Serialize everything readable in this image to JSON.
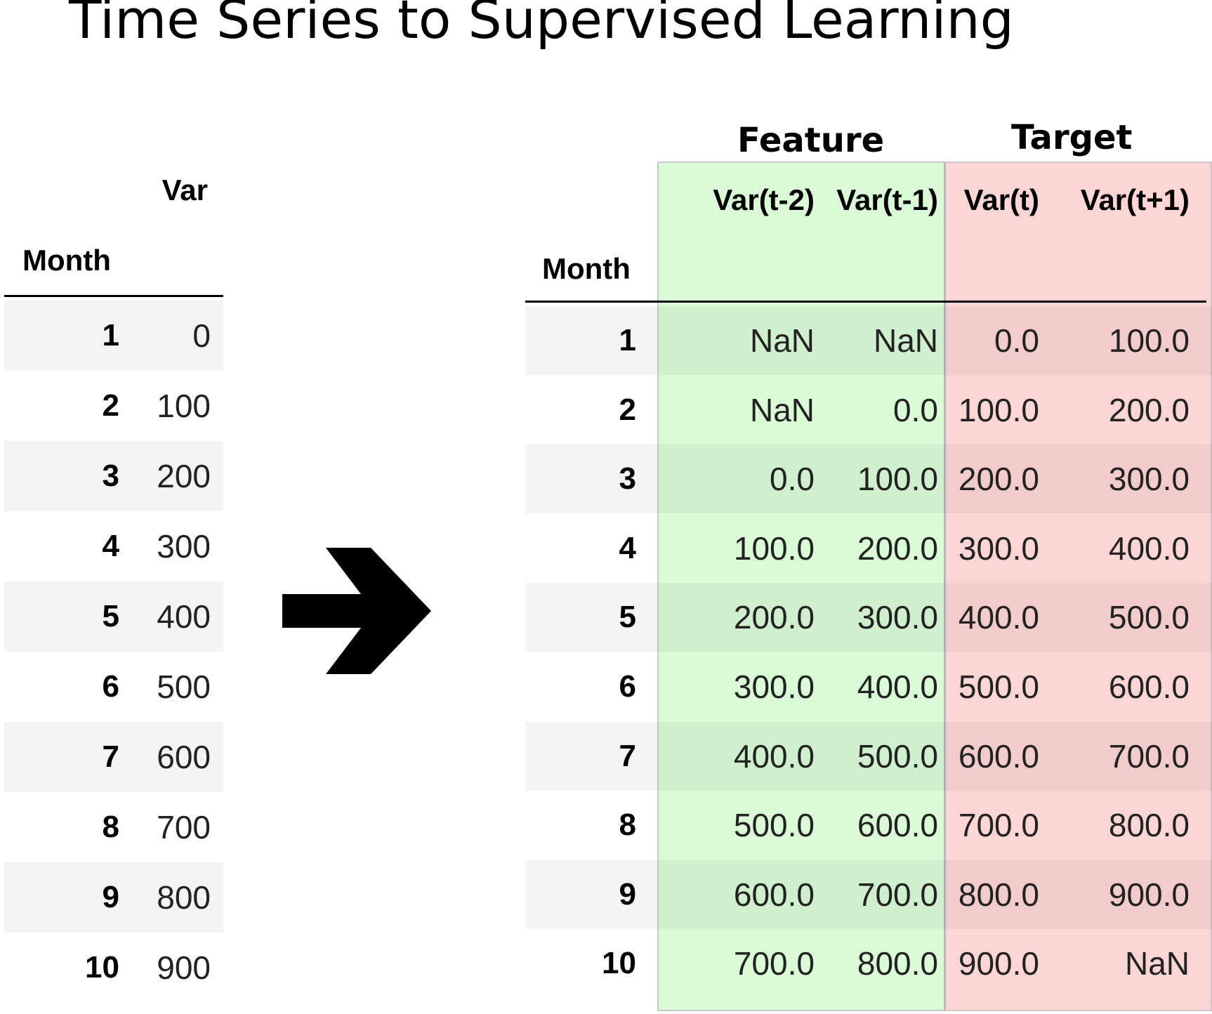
{
  "title": "Time Series to Supervised Learning",
  "left_table": {
    "column_header": "Var",
    "index_header": "Month",
    "rows": [
      {
        "month": "1",
        "var": "0"
      },
      {
        "month": "2",
        "var": "100"
      },
      {
        "month": "3",
        "var": "200"
      },
      {
        "month": "4",
        "var": "300"
      },
      {
        "month": "5",
        "var": "400"
      },
      {
        "month": "6",
        "var": "500"
      },
      {
        "month": "7",
        "var": "600"
      },
      {
        "month": "8",
        "var": "700"
      },
      {
        "month": "9",
        "var": "800"
      },
      {
        "month": "10",
        "var": "900"
      }
    ]
  },
  "arrow_icon": "right-arrow-icon",
  "right_table": {
    "feature_label": "Feature",
    "target_label": "Target",
    "index_header": "Month",
    "columns": [
      "Var(t-2)",
      "Var(t-1)",
      "Var(t)",
      "Var(t+1)"
    ],
    "feature_color": "#d9fbd6",
    "target_color": "#fcd6d4",
    "rows": [
      {
        "month": "1",
        "cells": [
          "NaN",
          "NaN",
          "0.0",
          "100.0"
        ]
      },
      {
        "month": "2",
        "cells": [
          "NaN",
          "0.0",
          "100.0",
          "200.0"
        ]
      },
      {
        "month": "3",
        "cells": [
          "0.0",
          "100.0",
          "200.0",
          "300.0"
        ]
      },
      {
        "month": "4",
        "cells": [
          "100.0",
          "200.0",
          "300.0",
          "400.0"
        ]
      },
      {
        "month": "5",
        "cells": [
          "200.0",
          "300.0",
          "400.0",
          "500.0"
        ]
      },
      {
        "month": "6",
        "cells": [
          "300.0",
          "400.0",
          "500.0",
          "600.0"
        ]
      },
      {
        "month": "7",
        "cells": [
          "400.0",
          "500.0",
          "600.0",
          "700.0"
        ]
      },
      {
        "month": "8",
        "cells": [
          "500.0",
          "600.0",
          "700.0",
          "800.0"
        ]
      },
      {
        "month": "9",
        "cells": [
          "600.0",
          "700.0",
          "800.0",
          "900.0"
        ]
      },
      {
        "month": "10",
        "cells": [
          "700.0",
          "800.0",
          "900.0",
          "NaN"
        ]
      }
    ]
  }
}
